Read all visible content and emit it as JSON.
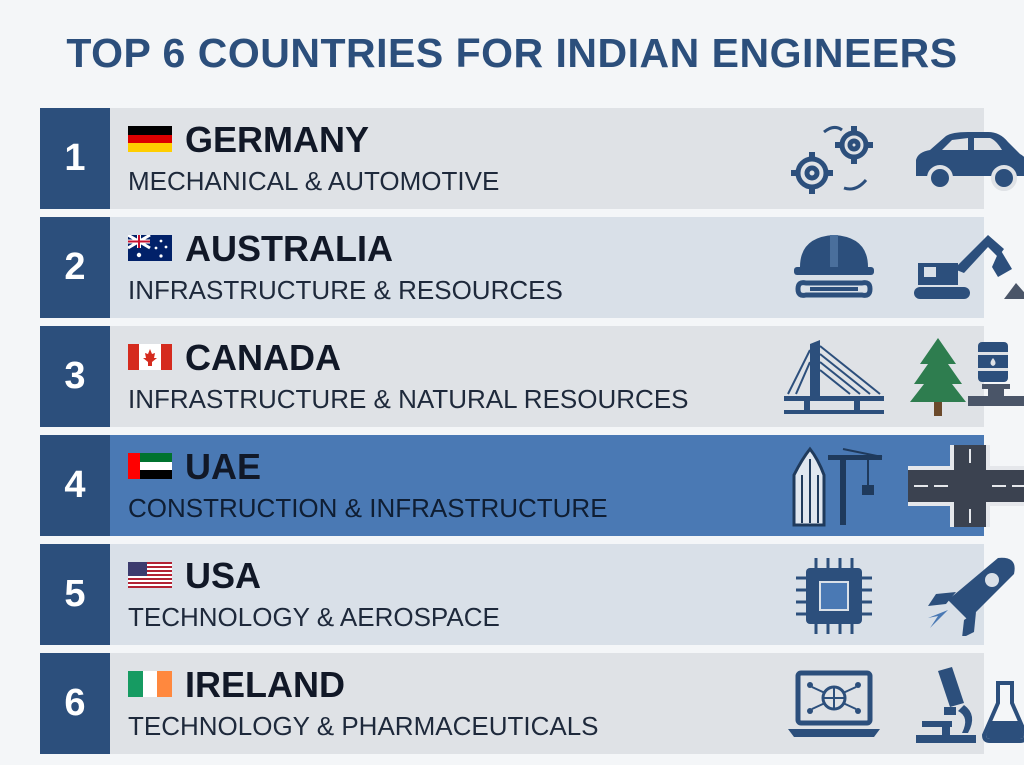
{
  "title": "TOP 6 COUNTRIES FOR INDIAN ENGINEERS",
  "colors": {
    "navy": "#2c4f7c",
    "highlight": "#4a79b4",
    "row": "#dfe2e6"
  },
  "rows": [
    {
      "rank": "1",
      "country": "GERMANY",
      "sector": "MECHANICAL & AUTOMOTIVE",
      "icons": [
        "gears-icon",
        "car-icon"
      ]
    },
    {
      "rank": "2",
      "country": "AUSTRALIA",
      "sector": "INFRASTRUCTURE & RESOURCES",
      "icons": [
        "hardhat-wrench-icon",
        "excavator-icon"
      ]
    },
    {
      "rank": "3",
      "country": "CANADA",
      "sector": "INFRASTRUCTURE & NATURAL RESOURCES",
      "icons": [
        "bridge-icon",
        "tree-oil-barrel-icon"
      ]
    },
    {
      "rank": "4",
      "country": "UAE",
      "sector": "CONSTRUCTION & INFRASTRUCTURE",
      "icons": [
        "skyscraper-crane-icon",
        "road-intersection-icon"
      ]
    },
    {
      "rank": "5",
      "country": "USA",
      "sector": "TECHNOLOGY & AEROSPACE",
      "icons": [
        "microchip-icon",
        "rocket-icon"
      ]
    },
    {
      "rank": "6",
      "country": "IRELAND",
      "sector": "TECHNOLOGY & PHARMACEUTICALS",
      "icons": [
        "laptop-network-icon",
        "microscope-flask-icon"
      ]
    }
  ]
}
